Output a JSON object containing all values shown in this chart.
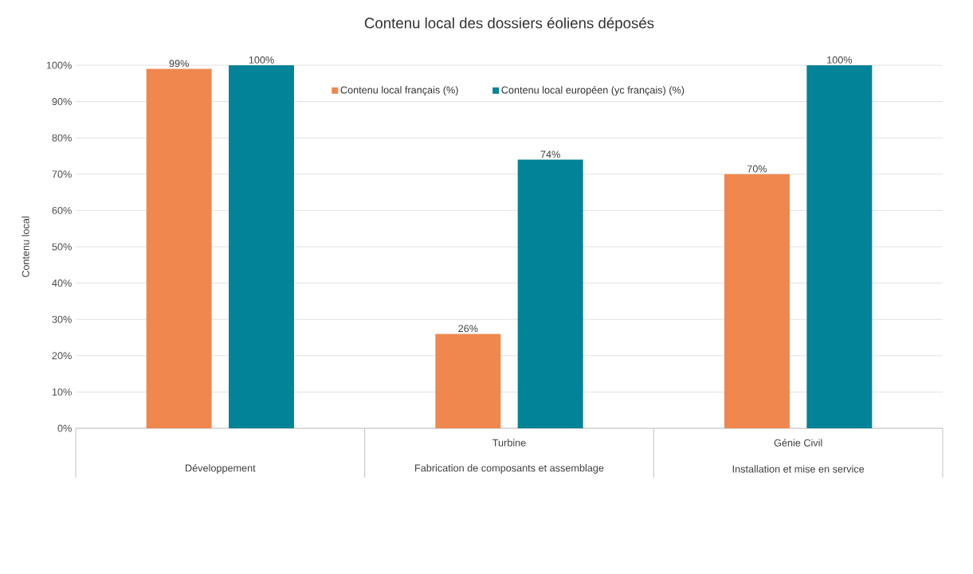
{
  "chart_data": {
    "type": "bar",
    "title": "Contenu local des dossiers éoliens déposés",
    "ylabel": "Contenu local",
    "categories": [
      "Développement",
      "Fabrication de composants et assemblage",
      "Installation et mise en service"
    ],
    "annotations": [
      "Turbine",
      "Génie Civil"
    ],
    "series": [
      {
        "name": "Contenu local français (%)",
        "color": "#f0874f",
        "values": [
          99,
          26,
          70
        ],
        "value_labels": [
          "99%",
          "26%",
          "70%"
        ]
      },
      {
        "name": "Contenu local européen (yc français) (%)",
        "color": "#028397",
        "values": [
          100,
          74,
          100
        ],
        "value_labels": [
          "100%",
          "74%",
          "100%"
        ]
      }
    ],
    "ylim": [
      0,
      100
    ],
    "yticks": [
      {
        "value": 0,
        "label": "0%"
      },
      {
        "value": 10,
        "label": "10%"
      },
      {
        "value": 20,
        "label": "20%"
      },
      {
        "value": 30,
        "label": "30%"
      },
      {
        "value": 40,
        "label": "40%"
      },
      {
        "value": 50,
        "label": "50%"
      },
      {
        "value": 60,
        "label": "60%"
      },
      {
        "value": 70,
        "label": "70%"
      },
      {
        "value": 80,
        "label": "80%"
      },
      {
        "value": 90,
        "label": "90%"
      },
      {
        "value": 100,
        "label": "100%"
      }
    ],
    "grid": "y",
    "legend": "top"
  }
}
